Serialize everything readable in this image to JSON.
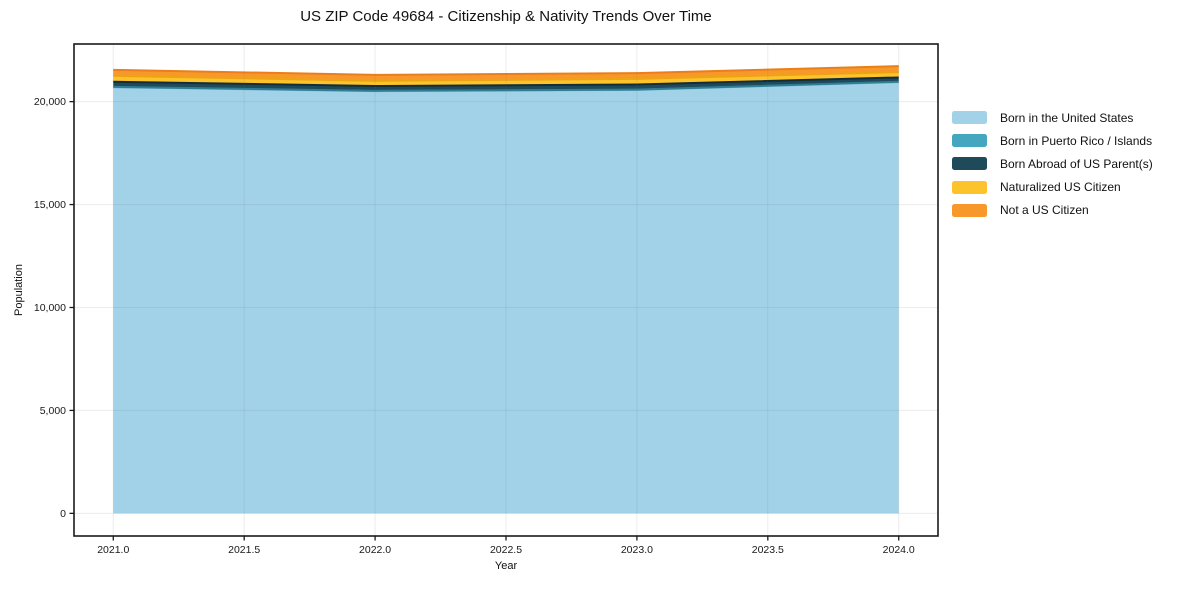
{
  "chart_data": {
    "type": "area",
    "stacked": true,
    "title": "US ZIP Code 49684 - Citizenship & Nativity Trends Over Time",
    "xlabel": "Year",
    "ylabel": "Population",
    "x": [
      2021,
      2022,
      2023,
      2024
    ],
    "series": [
      {
        "name": "Born in the United States",
        "values": [
          20700,
          20510,
          20570,
          20950
        ],
        "fill": "#a2d2e8",
        "edge": "#79b4d4"
      },
      {
        "name": "Born in Puerto Rico / Islands",
        "values": [
          15,
          15,
          15,
          15
        ],
        "fill": "#45a7bf",
        "edge": "#2e7f96"
      },
      {
        "name": "Born Abroad of US Parent(s)",
        "values": [
          250,
          235,
          250,
          210
        ],
        "fill": "#1f4a5a",
        "edge": "#132e3a"
      },
      {
        "name": "Naturalized US Citizen",
        "values": [
          290,
          250,
          270,
          260
        ],
        "fill": "#fcc32d",
        "edge": "#eda414"
      },
      {
        "name": "Not a US Citizen",
        "values": [
          290,
          290,
          280,
          290
        ],
        "fill": "#f8982b",
        "edge": "#ea7f17"
      }
    ],
    "xlim": [
      2020.85,
      2024.15
    ],
    "ylim": [
      -1100,
      22800
    ],
    "xticks": [
      2021.0,
      2021.5,
      2022.0,
      2022.5,
      2023.0,
      2023.5,
      2024.0
    ],
    "xtick_labels": [
      "2021.0",
      "2021.5",
      "2022.0",
      "2022.5",
      "2023.0",
      "2023.5",
      "2024.0"
    ],
    "yticks": [
      0,
      5000,
      10000,
      15000,
      20000
    ],
    "ytick_labels": [
      "0",
      "5,000",
      "10,000",
      "15,000",
      "20,000"
    ],
    "grid": true,
    "legend_position": "right",
    "colors": {
      "spine": "#1a1a1a",
      "tick_text": "#191919",
      "gridline": "rgba(110,110,110,0.13)",
      "background": "#ffffff"
    }
  }
}
